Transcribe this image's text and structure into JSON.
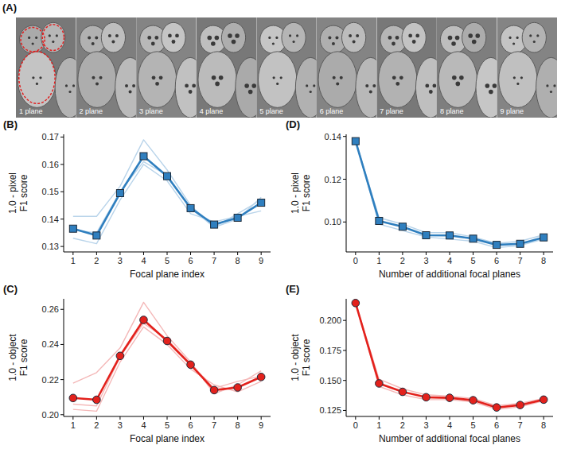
{
  "image_strip": {
    "panel_label": "(A)",
    "labels": [
      "1 plane",
      "2 plane",
      "3 plane",
      "4 plane",
      "5 plane",
      "6 plane",
      "7 plane",
      "8 plane",
      "9 plane"
    ]
  },
  "chart_data": [
    {
      "type": "line",
      "panel_label": "(B)",
      "x_label": "Focal plane index",
      "y_label": "1.0 - pixel F1 score",
      "x": [
        1,
        2,
        3,
        4,
        5,
        6,
        7,
        8,
        9
      ],
      "xlim": [
        0.6,
        9.4
      ],
      "xticks": [
        1,
        2,
        3,
        4,
        5,
        6,
        7,
        8,
        9
      ],
      "ylim": [
        0.128,
        0.171
      ],
      "yticks": [
        0.13,
        0.14,
        0.15,
        0.16,
        0.17
      ],
      "series": [
        {
          "color": "#b9d4ea",
          "values": [
            0.141,
            0.141,
            0.152,
            0.169,
            0.158,
            0.145,
            0.137,
            0.14,
            0.148
          ]
        },
        {
          "color": "#b9d4ea",
          "values": [
            0.133,
            0.131,
            0.147,
            0.16,
            0.154,
            0.142,
            0.139,
            0.141,
            0.143
          ]
        },
        {
          "color": "#b9d4ea",
          "values": [
            0.136,
            0.135,
            0.15,
            0.161,
            0.156,
            0.144,
            0.137,
            0.142,
            0.147
          ]
        },
        {
          "color": "#2f7fbf",
          "marker": "square",
          "values": [
            0.1365,
            0.134,
            0.1495,
            0.163,
            0.1557,
            0.144,
            0.138,
            0.1405,
            0.146
          ]
        }
      ]
    },
    {
      "type": "line",
      "panel_label": "(C)",
      "x_label": "Focal plane index",
      "y_label": "1.0 - object F1 score",
      "x": [
        1,
        2,
        3,
        4,
        5,
        6,
        7,
        8,
        9
      ],
      "xlim": [
        0.6,
        9.4
      ],
      "xticks": [
        1,
        2,
        3,
        4,
        5,
        6,
        7,
        8,
        9
      ],
      "ylim": [
        0.199,
        0.266
      ],
      "yticks": [
        {
          "value": 0.2,
          "label": "0.20"
        },
        0.22,
        0.24,
        0.26
      ],
      "series": [
        {
          "color": "#f4b8b8",
          "values": [
            0.218,
            0.224,
            0.238,
            0.264,
            0.245,
            0.23,
            0.212,
            0.217,
            0.225
          ]
        },
        {
          "color": "#f4b8b8",
          "values": [
            0.203,
            0.202,
            0.23,
            0.25,
            0.24,
            0.226,
            0.217,
            0.213,
            0.219
          ]
        },
        {
          "color": "#f4b8b8",
          "values": [
            0.206,
            0.205,
            0.233,
            0.252,
            0.243,
            0.229,
            0.215,
            0.219,
            0.222
          ]
        },
        {
          "color": "#e3211c",
          "marker": "circle",
          "values": [
            0.2095,
            0.2085,
            0.2335,
            0.254,
            0.242,
            0.2285,
            0.214,
            0.2155,
            0.2215
          ]
        }
      ]
    },
    {
      "type": "line",
      "panel_label": "(D)",
      "x_label": "Number of additional focal planes",
      "y_label": "1.0 - pixel F1 score",
      "x": [
        0,
        1,
        2,
        3,
        4,
        5,
        6,
        7,
        8
      ],
      "xlim": [
        -0.4,
        8.4
      ],
      "xticks": [
        0,
        1,
        2,
        3,
        4,
        5,
        6,
        7,
        8
      ],
      "ylim": [
        0.086,
        0.141
      ],
      "yticks": [
        {
          "value": 0.1,
          "label": "0.10"
        },
        0.12,
        0.14
      ],
      "series": [
        {
          "color": "#b9d4ea",
          "values": [
            0.138,
            0.102,
            0.099,
            0.095,
            0.095,
            0.093,
            0.09,
            0.091,
            0.094
          ]
        },
        {
          "color": "#b9d4ea",
          "values": [
            0.138,
            0.099,
            0.096,
            0.093,
            0.092,
            0.091,
            0.088,
            0.089,
            0.092
          ]
        },
        {
          "color": "#2f7fbf",
          "marker": "square",
          "values": [
            0.1378,
            0.1005,
            0.0978,
            0.0938,
            0.0937,
            0.0922,
            0.0893,
            0.0898,
            0.0928
          ]
        }
      ]
    },
    {
      "type": "line",
      "panel_label": "(E)",
      "x_label": "Number of additional focal planes",
      "y_label": "1.0 - object F1 score",
      "x": [
        0,
        1,
        2,
        3,
        4,
        5,
        6,
        7,
        8
      ],
      "xlim": [
        -0.4,
        8.4
      ],
      "xticks": [
        0,
        1,
        2,
        3,
        4,
        5,
        6,
        7,
        8
      ],
      "ylim": [
        0.12,
        0.218
      ],
      "yticks": [
        0.125,
        {
          "value": 0.15,
          "label": "0.150"
        },
        0.175,
        {
          "value": 0.2,
          "label": "0.200"
        }
      ],
      "series": [
        {
          "color": "#f4b8b8",
          "values": [
            0.2145,
            0.151,
            0.143,
            0.138,
            0.137,
            0.135,
            0.129,
            0.131,
            0.135
          ]
        },
        {
          "color": "#f4b8b8",
          "values": [
            0.2145,
            0.145,
            0.138,
            0.134,
            0.134,
            0.132,
            0.126,
            0.128,
            0.133
          ]
        },
        {
          "color": "#e3211c",
          "marker": "circle",
          "values": [
            0.2145,
            0.1475,
            0.1405,
            0.136,
            0.1355,
            0.1335,
            0.1275,
            0.1295,
            0.134
          ]
        }
      ]
    }
  ]
}
